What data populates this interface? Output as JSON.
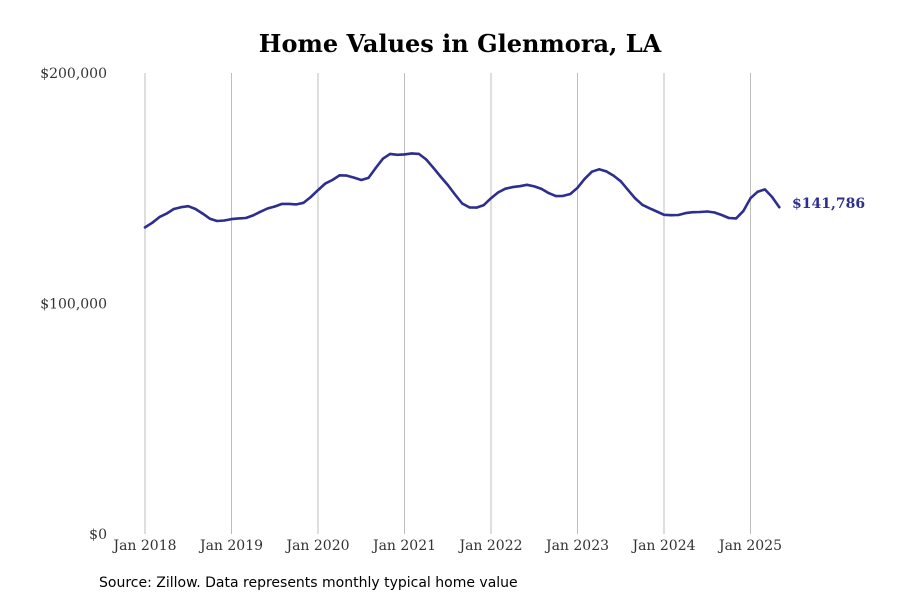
{
  "chart_data": {
    "type": "line",
    "title": "Home Values in Glenmora, LA",
    "xlabel": "",
    "ylabel": "",
    "ylim": [
      0,
      200000
    ],
    "y_ticks": [
      {
        "value": 0,
        "label": "$0"
      },
      {
        "value": 100000,
        "label": "$100,000"
      },
      {
        "value": 200000,
        "label": "$200,000"
      }
    ],
    "x_ticks": [
      {
        "date": "2018-01",
        "label": "Jan 2018"
      },
      {
        "date": "2019-01",
        "label": "Jan 2019"
      },
      {
        "date": "2020-01",
        "label": "Jan 2020"
      },
      {
        "date": "2021-01",
        "label": "Jan 2021"
      },
      {
        "date": "2022-01",
        "label": "Jan 2022"
      },
      {
        "date": "2023-01",
        "label": "Jan 2023"
      },
      {
        "date": "2024-01",
        "label": "Jan 2024"
      },
      {
        "date": "2025-01",
        "label": "Jan 2025"
      }
    ],
    "grid": "vertical",
    "line_color": "#2e2e8f",
    "series": [
      {
        "x": [
          "2018-01",
          "2018-02",
          "2018-03",
          "2018-04",
          "2018-05",
          "2018-06",
          "2018-07",
          "2018-08",
          "2018-09",
          "2018-10",
          "2018-11",
          "2018-12",
          "2019-01",
          "2019-02",
          "2019-03",
          "2019-04",
          "2019-05",
          "2019-06",
          "2019-07",
          "2019-08",
          "2019-09",
          "2019-10",
          "2019-11",
          "2019-12",
          "2020-01",
          "2020-02",
          "2020-03",
          "2020-04",
          "2020-05",
          "2020-06",
          "2020-07",
          "2020-08",
          "2020-09",
          "2020-10",
          "2020-11",
          "2020-12",
          "2021-01",
          "2021-02",
          "2021-03",
          "2021-04",
          "2021-05",
          "2021-06",
          "2021-07",
          "2021-08",
          "2021-09",
          "2021-10",
          "2021-11",
          "2021-12",
          "2022-01",
          "2022-02",
          "2022-03",
          "2022-04",
          "2022-05",
          "2022-06",
          "2022-07",
          "2022-08",
          "2022-09",
          "2022-10",
          "2022-11",
          "2022-12",
          "2023-01",
          "2023-02",
          "2023-03",
          "2023-04",
          "2023-05",
          "2023-06",
          "2023-07",
          "2023-08",
          "2023-09",
          "2023-10",
          "2023-11",
          "2023-12",
          "2024-01",
          "2024-02",
          "2024-03",
          "2024-04",
          "2024-05",
          "2024-06",
          "2024-07",
          "2024-08",
          "2024-09",
          "2024-10",
          "2024-11",
          "2024-12",
          "2025-01",
          "2025-02",
          "2025-03",
          "2025-04",
          "2025-05"
        ],
        "values": [
          133000,
          135000,
          137500,
          139000,
          141000,
          141800,
          142200,
          141000,
          139000,
          136800,
          135800,
          136000,
          136600,
          136900,
          137100,
          138200,
          139800,
          141200,
          142100,
          143200,
          143200,
          143000,
          143700,
          146200,
          149200,
          152000,
          153600,
          155600,
          155500,
          154600,
          153600,
          154500,
          158800,
          162800,
          164900,
          164500,
          164700,
          165100,
          164900,
          162500,
          158900,
          155100,
          151400,
          147300,
          143400,
          141700,
          141600,
          142700,
          145700,
          148200,
          149800,
          150500,
          150900,
          151500,
          150800,
          149700,
          147900,
          146600,
          146700,
          147500,
          150200,
          154100,
          157200,
          158200,
          157300,
          155500,
          153000,
          149300,
          145600,
          142800,
          141300,
          139900,
          138500,
          138300,
          138400,
          139200,
          139600,
          139700,
          139900,
          139500,
          138400,
          137100,
          136900,
          140100,
          145700,
          148500,
          149500,
          146200,
          141786
        ]
      }
    ],
    "end_label": "$141,786"
  },
  "source_note": "Source: Zillow. Data represents monthly typical home value"
}
